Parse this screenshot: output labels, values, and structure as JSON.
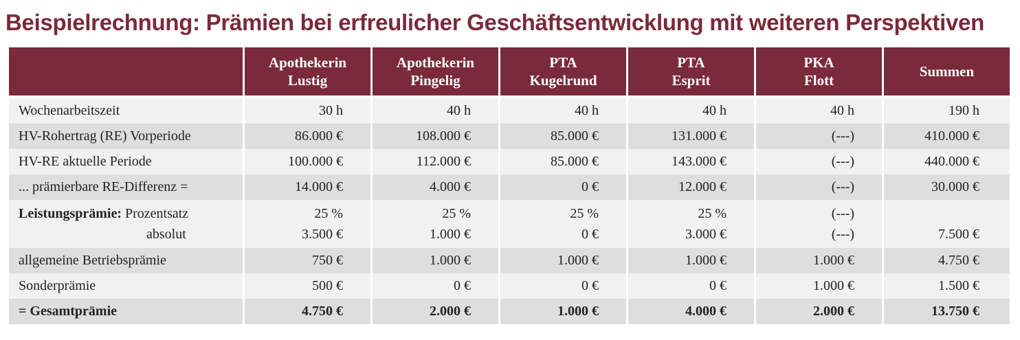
{
  "title": "Beispielrechnung: Prämien bei erfreulicher Geschäftsentwicklung mit weiteren Perspektiven",
  "columns": [
    {
      "line1": "Apothekerin",
      "line2": "Lustig"
    },
    {
      "line1": "Apothekerin",
      "line2": "Pingelig"
    },
    {
      "line1": "PTA",
      "line2": "Kugelrund"
    },
    {
      "line1": "PTA",
      "line2": "Esprit"
    },
    {
      "line1": "PKA",
      "line2": "Flott"
    },
    {
      "line1": "Summen",
      "line2": ""
    }
  ],
  "rows": {
    "wochenarbeitszeit": {
      "label": "Wochenarbeitszeit",
      "values": [
        "30 h",
        "40 h",
        "40 h",
        "40 h",
        "40 h",
        "190 h"
      ]
    },
    "rohertrag_vor": {
      "label": "HV-Rohertrag (RE) Vorperiode",
      "values": [
        "86.000 €",
        "108.000 €",
        "85.000 €",
        "131.000 €",
        "(---)",
        "410.000 €"
      ]
    },
    "re_aktuell": {
      "label": "HV-RE aktuelle Periode",
      "values": [
        "100.000 €",
        "112.000 €",
        "85.000 €",
        "143.000 €",
        "(---)",
        "440.000 €"
      ]
    },
    "re_differenz": {
      "label": "... prämierbare RE-Differenz =",
      "values": [
        "14.000 €",
        "4.000 €",
        "0 €",
        "12.000 €",
        "(---)",
        "30.000 €"
      ]
    },
    "leistung": {
      "label_bold": "Leistungsprämie:",
      "label_rest": "Prozentsatz",
      "label_sub": "absolut",
      "percent": [
        "25 %",
        "25 %",
        "25 %",
        "25 %",
        "(---)",
        ""
      ],
      "absolute": [
        "3.500 €",
        "1.000 €",
        "0 €",
        "3.000 €",
        "(---)",
        "7.500 €"
      ]
    },
    "betriebspraemie": {
      "label": "allgemeine Betriebsprämie",
      "values": [
        "750 €",
        "1.000 €",
        "1.000 €",
        "1.000 €",
        "1.000 €",
        "4.750 €"
      ]
    },
    "sonderpraemie": {
      "label": "Sonderprämie",
      "values": [
        "500 €",
        "0 €",
        "0 €",
        "0 €",
        "1.000 €",
        "1.500 €"
      ]
    },
    "gesamt": {
      "label": "= Gesamtprämie",
      "values": [
        "4.750 €",
        "2.000 €",
        "1.000 €",
        "4.000 €",
        "2.000 €",
        "13.750 €"
      ]
    }
  }
}
